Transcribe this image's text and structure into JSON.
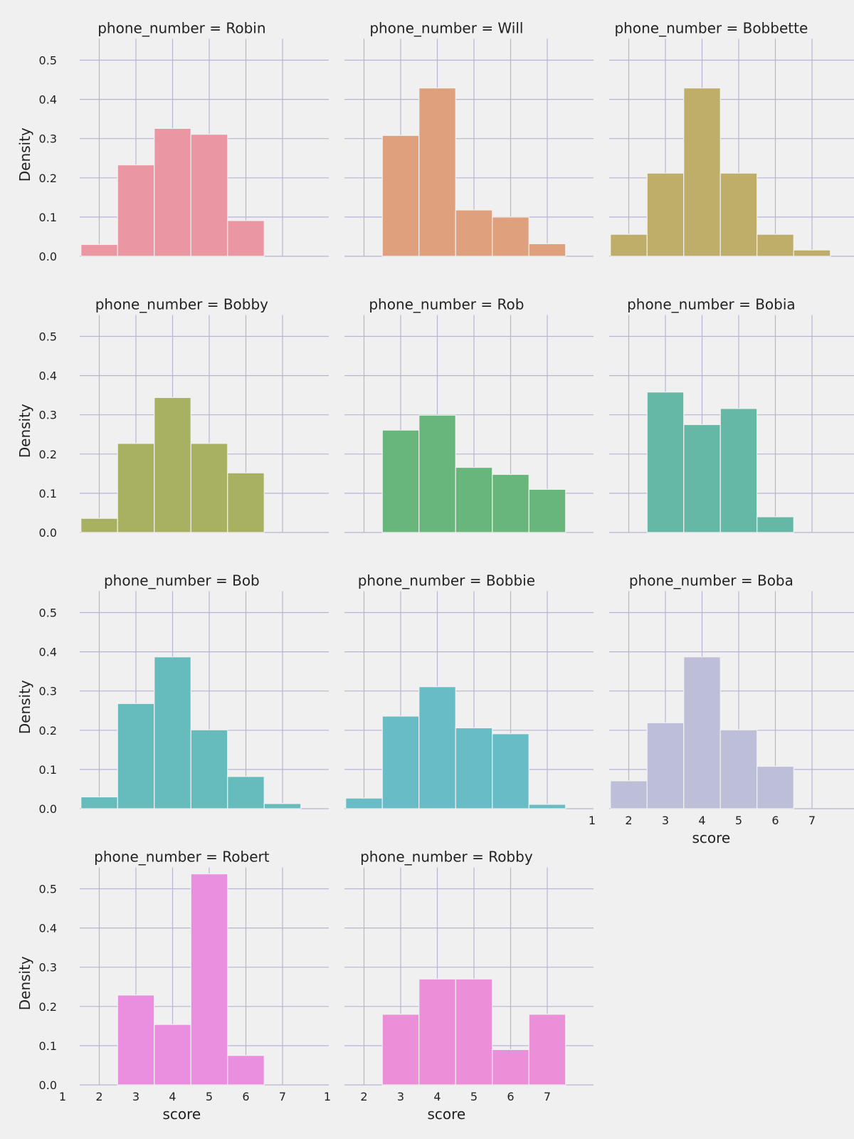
{
  "chart_data": {
    "type": "bar",
    "facet_variable": "phone_number",
    "xlabel": "score",
    "ylabel": "Density",
    "xlim": [
      1,
      7.5
    ],
    "ylim": [
      0,
      0.56
    ],
    "xticks": [
      1,
      2,
      3,
      4,
      5,
      6,
      7
    ],
    "yticks": [
      0.0,
      0.1,
      0.2,
      0.3,
      0.4,
      0.5
    ],
    "ytick_labels": [
      "0.0",
      "0.1",
      "0.2",
      "0.3",
      "0.4",
      "0.5"
    ],
    "bin_edges": [
      1.5,
      2.5,
      3.5,
      4.5,
      5.5,
      6.5,
      7.5
    ],
    "grid": true,
    "panels": [
      {
        "title": "phone_number = Robin",
        "name": "Robin",
        "color": "#ea96a3",
        "values": [
          0.03,
          0.233,
          0.326,
          0.311,
          0.091,
          0
        ]
      },
      {
        "title": "phone_number = Will",
        "name": "Will",
        "color": "#dfa07e",
        "values": [
          0,
          0.308,
          0.429,
          0.118,
          0.1,
          0.032
        ]
      },
      {
        "title": "phone_number = Bobbette",
        "name": "Bobbette",
        "color": "#bfad6a",
        "values": [
          0.056,
          0.212,
          0.429,
          0.212,
          0.056,
          0.016
        ]
      },
      {
        "title": "phone_number = Bobby",
        "name": "Bobby",
        "color": "#a8b062",
        "values": [
          0.036,
          0.227,
          0.344,
          0.227,
          0.152,
          0
        ]
      },
      {
        "title": "phone_number = Rob",
        "name": "Rob",
        "color": "#68b67c",
        "values": [
          0,
          0.261,
          0.299,
          0.166,
          0.148,
          0.11
        ]
      },
      {
        "title": "phone_number = Bobia",
        "name": "Bobia",
        "color": "#65b8a5",
        "values": [
          0,
          0.358,
          0.275,
          0.316,
          0.04,
          0
        ]
      },
      {
        "title": "phone_number = Bob",
        "name": "Bob",
        "color": "#66bbbd",
        "values": [
          0.03,
          0.268,
          0.387,
          0.201,
          0.082,
          0.013
        ]
      },
      {
        "title": "phone_number = Bobbie",
        "name": "Bobbie",
        "color": "#67bcc6",
        "values": [
          0.027,
          0.236,
          0.311,
          0.206,
          0.191,
          0.011
        ]
      },
      {
        "title": "phone_number = Boba",
        "name": "Boba",
        "color": "#bdbfd8",
        "values": [
          0.071,
          0.219,
          0.387,
          0.201,
          0.108,
          0
        ]
      },
      {
        "title": "phone_number = Robert",
        "name": "Robert",
        "color": "#ea8edf",
        "values": [
          0,
          0.229,
          0.154,
          0.538,
          0.075,
          0
        ]
      },
      {
        "title": "phone_number = Robby",
        "name": "Robby",
        "color": "#eb8fd8",
        "values": [
          0,
          0.18,
          0.27,
          0.27,
          0.09,
          0.18
        ]
      }
    ]
  }
}
